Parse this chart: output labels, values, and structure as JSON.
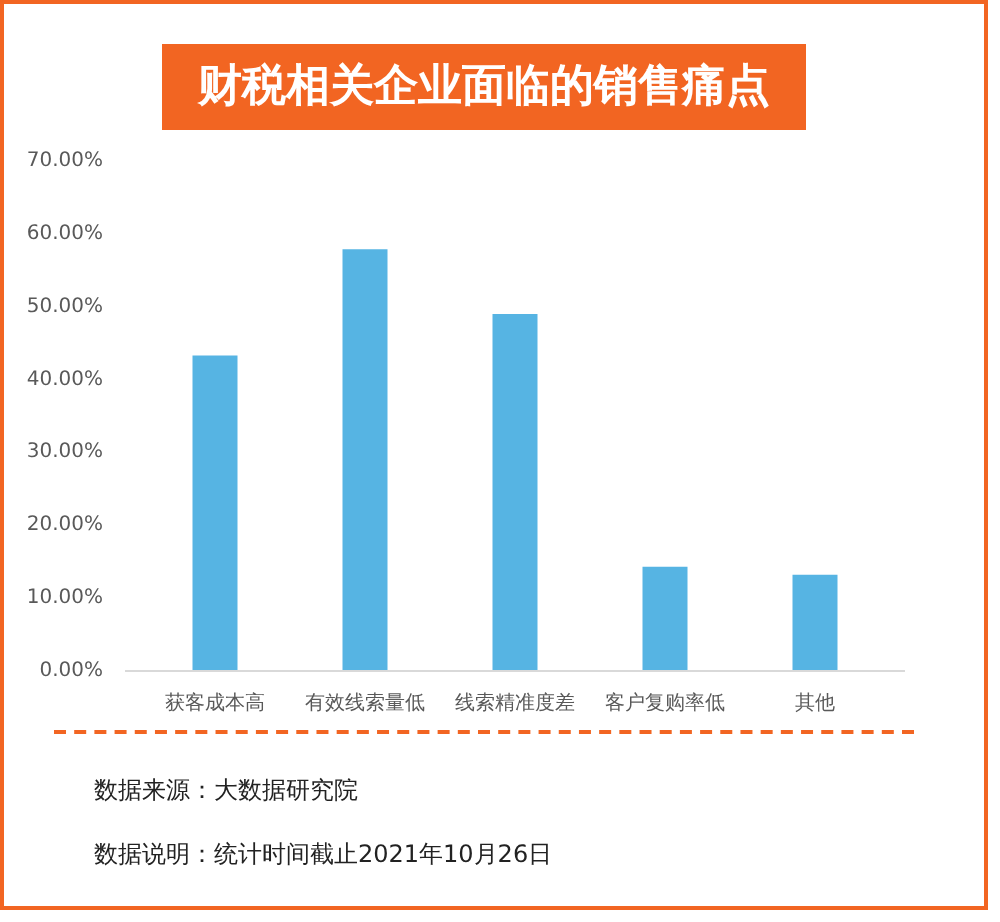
{
  "chart_data": {
    "type": "bar",
    "title": "财税相关企业面临的销售痛点",
    "categories": [
      "获客成本高",
      "有效线索量低",
      "线索精准度差",
      "客户复购率低",
      "其他"
    ],
    "values": [
      43.3,
      57.9,
      49.0,
      14.3,
      13.2
    ],
    "color": "#56b4e3",
    "ylim": [
      0,
      70
    ],
    "yticks": [
      {
        "value": 0,
        "label": "0.00%"
      },
      {
        "value": 10,
        "label": "10.00%"
      },
      {
        "value": 20,
        "label": "20.00%"
      },
      {
        "value": 30,
        "label": "30.00%"
      },
      {
        "value": 40,
        "label": "40.00%"
      },
      {
        "value": 50,
        "label": "50.00%"
      },
      {
        "value": 60,
        "label": "60.00%"
      },
      {
        "value": 70,
        "label": "70.00%"
      }
    ],
    "grid": false,
    "annotations": [
      "数据来源：大数据研究院",
      "数据说明：统计时间截止2021年10月26日"
    ]
  }
}
